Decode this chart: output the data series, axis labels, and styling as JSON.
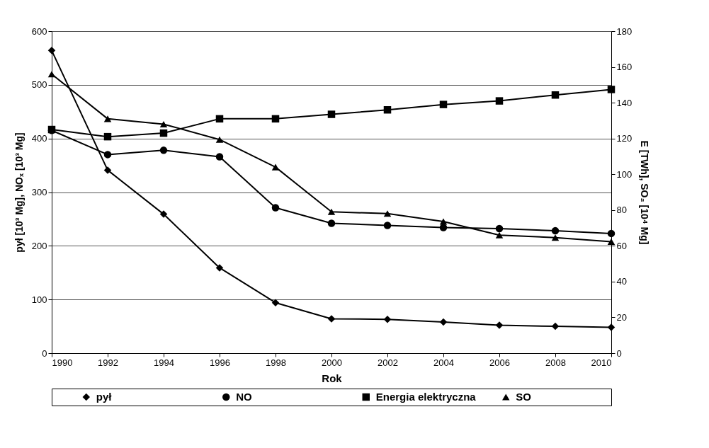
{
  "chart_data": {
    "type": "line",
    "xlabel": "Rok",
    "ylabel": "pył [10³ Mg], NOₓ [10³ Mg]",
    "y2label": "E [TWh], SO₂ [10⁴ Mg]",
    "x": [
      1990,
      1992,
      1994,
      1996,
      1998,
      2000,
      2002,
      2004,
      2006,
      2008,
      2010
    ],
    "xlim": [
      1990,
      2010
    ],
    "xticks": [
      1990,
      1992,
      1994,
      1996,
      1998,
      2000,
      2002,
      2004,
      2006,
      2008,
      2010
    ],
    "ylim": [
      0,
      600
    ],
    "yticks": [
      0,
      100,
      200,
      300,
      400,
      500,
      600
    ],
    "y2lim": [
      0,
      180
    ],
    "y2ticks": [
      0,
      20,
      40,
      60,
      80,
      100,
      120,
      140,
      160,
      180
    ],
    "grid": "y",
    "legend": "bottom",
    "line_style": "solid",
    "series": [
      {
        "name": "pył",
        "color": "#000000",
        "marker": "diamond",
        "values": [
          564,
          341,
          259,
          159,
          94,
          64,
          63,
          58,
          52,
          50,
          48
        ]
      },
      {
        "name": "NO",
        "color": "#000000",
        "marker": "circle",
        "values": [
          415,
          370,
          378,
          366,
          271,
          242,
          238,
          234,
          232,
          228,
          223
        ]
      },
      {
        "name": "Energia elektryczna",
        "color": "#000000",
        "marker": "square",
        "axis": "y2",
        "values": [
          125,
          121,
          123,
          131,
          131,
          133.5,
          136,
          139,
          141,
          144.3,
          147.4
        ]
      },
      {
        "name": "SO",
        "color": "#000000",
        "marker": "triangle",
        "axis": "y2",
        "values": [
          156,
          131,
          128,
          119.4,
          104,
          79,
          78,
          73.6,
          66,
          64.6,
          62.3
        ]
      }
    ]
  }
}
